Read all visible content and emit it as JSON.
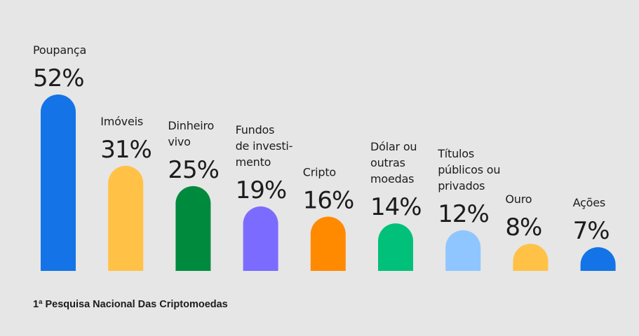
{
  "chart_data": {
    "type": "bar",
    "categories": [
      [
        "Poupança"
      ],
      [
        "Imóveis"
      ],
      [
        "Dinheiro",
        "vivo"
      ],
      [
        "Fundos",
        "de investi-",
        "mento"
      ],
      [
        "Cripto"
      ],
      [
        "Dólar ou",
        "outras",
        "moedas"
      ],
      [
        "Títulos",
        "públicos ou",
        "privados"
      ],
      [
        "Ouro"
      ],
      [
        "Ações"
      ]
    ],
    "values": [
      52,
      31,
      25,
      19,
      16,
      14,
      12,
      8,
      7
    ],
    "value_labels": [
      "52%",
      "31%",
      "25%",
      "19%",
      "16%",
      "14%",
      "12%",
      "8%",
      "7%"
    ],
    "colors": [
      "#1473e6",
      "#ffc247",
      "#008a3e",
      "#7b6cff",
      "#ff8a00",
      "#00c07a",
      "#8fc6ff",
      "#ffc247",
      "#1473e6"
    ],
    "unit": "%",
    "grid": false,
    "legend": "none"
  },
  "footer": {
    "source": "1ª Pesquisa Nacional Das Criptomoedas"
  }
}
